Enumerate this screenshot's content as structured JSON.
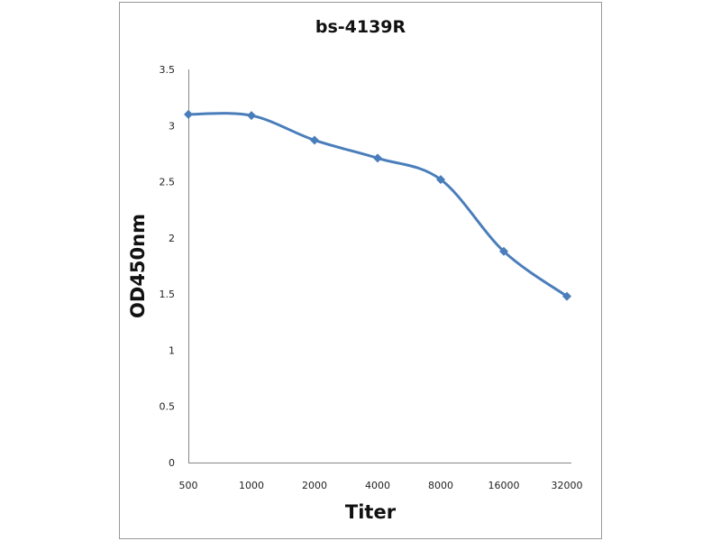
{
  "chart_data": {
    "type": "line",
    "title": "bs-4139R",
    "xlabel": "Titer",
    "ylabel": "OD450nm",
    "categories": [
      "500",
      "1000",
      "2000",
      "4000",
      "8000",
      "16000",
      "32000"
    ],
    "series": [
      {
        "name": "bs-4139R",
        "values": [
          3.1,
          3.09,
          2.87,
          2.71,
          2.52,
          1.88,
          1.48
        ],
        "color": "#4a7ebb",
        "marker": "diamond",
        "smooth": true
      }
    ],
    "ylim": [
      0,
      3.5
    ],
    "yticks": [
      "0",
      "0.5",
      "1",
      "1.5",
      "2",
      "2.5",
      "3",
      "3.5"
    ],
    "grid": false,
    "legend": "none"
  }
}
